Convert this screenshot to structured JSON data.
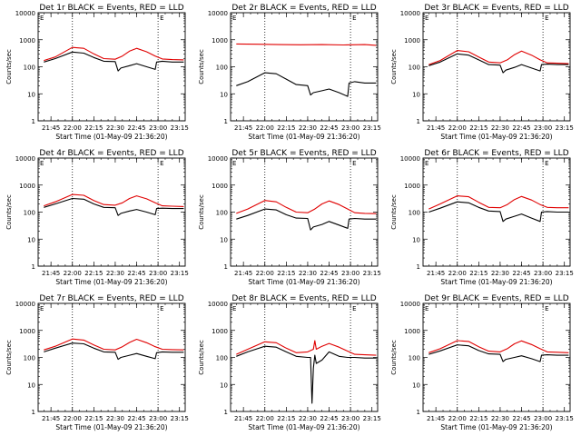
{
  "figure": {
    "red_color": "#e00000",
    "black_color": "#000000",
    "yticks": [
      "1",
      "10",
      "100",
      "1000",
      "10000"
    ],
    "ytick_values": [
      1,
      10,
      100,
      1000,
      10000
    ],
    "xticks": [
      "21:45",
      "22:00",
      "22:15",
      "22:30",
      "22:45",
      "23:00",
      "23:15"
    ],
    "xtick_minutes": [
      -15,
      0,
      15,
      30,
      45,
      60,
      75
    ],
    "dotted_line_minutes": [
      0,
      60
    ],
    "top_marker_labels": [
      "E",
      "E"
    ],
    "ylabel": "Counts/sec",
    "xlabel": "Start Time (01-May-09 21:36:20)"
  },
  "chart_data": [
    {
      "type": "line",
      "title": "Det 1r BLACK = Events, RED = LLD",
      "xlim": [
        "21:36",
        "23:19"
      ],
      "ylim": [
        1,
        10000
      ],
      "yscale": "log",
      "series": [
        {
          "name": "RED",
          "x": [
            "21:40",
            "21:48",
            "22:00",
            "22:08",
            "22:15",
            "22:22",
            "22:30",
            "22:35",
            "22:40",
            "22:45",
            "22:52",
            "22:58",
            "23:03",
            "23:10",
            "23:18"
          ],
          "values": [
            170,
            230,
            520,
            480,
            300,
            200,
            190,
            250,
            380,
            480,
            360,
            250,
            195,
            185,
            180
          ]
        },
        {
          "name": "BLACK",
          "x": [
            "21:40",
            "21:48",
            "22:00",
            "22:08",
            "22:15",
            "22:22",
            "22:30",
            "22:32",
            "22:34",
            "22:40",
            "22:45",
            "22:52",
            "22:58",
            "22:59",
            "23:03",
            "23:10",
            "23:18"
          ],
          "values": [
            150,
            200,
            350,
            320,
            220,
            160,
            155,
            70,
            90,
            110,
            130,
            100,
            80,
            150,
            160,
            150,
            150
          ]
        }
      ]
    },
    {
      "type": "line",
      "title": "Det 2r BLACK = Events, RED = LLD",
      "xlim": [
        "21:36",
        "23:19"
      ],
      "ylim": [
        1,
        10000
      ],
      "yscale": "log",
      "series": [
        {
          "name": "RED",
          "x": [
            "21:40",
            "21:55",
            "22:10",
            "22:25",
            "22:40",
            "22:55",
            "23:10",
            "23:18"
          ],
          "values": [
            700,
            680,
            660,
            650,
            660,
            640,
            660,
            620
          ]
        },
        {
          "name": "BLACK",
          "x": [
            "21:40",
            "21:48",
            "22:00",
            "22:08",
            "22:15",
            "22:22",
            "22:30",
            "22:32",
            "22:34",
            "22:40",
            "22:45",
            "22:52",
            "22:58",
            "22:59",
            "23:03",
            "23:10",
            "23:18"
          ],
          "values": [
            20,
            28,
            60,
            55,
            35,
            22,
            20,
            9,
            11,
            13,
            15,
            11,
            8,
            25,
            28,
            25,
            25
          ]
        }
      ]
    },
    {
      "type": "line",
      "title": "Det 3r BLACK = Events, RED = LLD",
      "xlim": [
        "21:36",
        "23:19"
      ],
      "ylim": [
        1,
        10000
      ],
      "yscale": "log",
      "series": [
        {
          "name": "RED",
          "x": [
            "21:40",
            "21:48",
            "22:00",
            "22:08",
            "22:15",
            "22:22",
            "22:30",
            "22:35",
            "22:40",
            "22:45",
            "22:52",
            "22:58",
            "23:03",
            "23:10",
            "23:18"
          ],
          "values": [
            120,
            170,
            400,
            360,
            230,
            150,
            140,
            180,
            280,
            380,
            270,
            180,
            140,
            135,
            130
          ]
        },
        {
          "name": "BLACK",
          "x": [
            "21:40",
            "21:48",
            "22:00",
            "22:08",
            "22:15",
            "22:22",
            "22:30",
            "22:32",
            "22:34",
            "22:40",
            "22:45",
            "22:52",
            "22:58",
            "22:59",
            "23:03",
            "23:10",
            "23:18"
          ],
          "values": [
            110,
            150,
            300,
            270,
            180,
            120,
            115,
            60,
            75,
            95,
            120,
            90,
            70,
            120,
            125,
            120,
            120
          ]
        }
      ]
    },
    {
      "type": "line",
      "title": "Det 4r BLACK = Events, RED = LLD",
      "xlim": [
        "21:36",
        "23:19"
      ],
      "ylim": [
        1,
        10000
      ],
      "yscale": "log",
      "series": [
        {
          "name": "RED",
          "x": [
            "21:40",
            "21:48",
            "22:00",
            "22:08",
            "22:15",
            "22:22",
            "22:30",
            "22:35",
            "22:40",
            "22:45",
            "22:52",
            "22:58",
            "23:03",
            "23:10",
            "23:18"
          ],
          "values": [
            170,
            240,
            450,
            420,
            270,
            190,
            180,
            220,
            320,
            400,
            310,
            220,
            170,
            165,
            160
          ]
        },
        {
          "name": "BLACK",
          "x": [
            "21:40",
            "21:48",
            "22:00",
            "22:08",
            "22:15",
            "22:22",
            "22:30",
            "22:32",
            "22:34",
            "22:40",
            "22:45",
            "22:52",
            "22:58",
            "22:59",
            "23:03",
            "23:10",
            "23:18"
          ],
          "values": [
            150,
            200,
            320,
            300,
            200,
            150,
            145,
            75,
            90,
            110,
            125,
            100,
            80,
            135,
            140,
            135,
            135
          ]
        }
      ]
    },
    {
      "type": "line",
      "title": "Det 5r BLACK = Events, RED = LLD",
      "xlim": [
        "21:36",
        "23:19"
      ],
      "ylim": [
        1,
        10000
      ],
      "yscale": "log",
      "series": [
        {
          "name": "RED",
          "x": [
            "21:40",
            "21:48",
            "22:00",
            "22:08",
            "22:15",
            "22:22",
            "22:30",
            "22:35",
            "22:40",
            "22:45",
            "22:52",
            "22:58",
            "23:03",
            "23:10",
            "23:18"
          ],
          "values": [
            90,
            130,
            270,
            240,
            150,
            100,
            95,
            130,
            200,
            260,
            190,
            130,
            95,
            90,
            88
          ]
        },
        {
          "name": "BLACK",
          "x": [
            "21:40",
            "21:48",
            "22:00",
            "22:08",
            "22:15",
            "22:22",
            "22:30",
            "22:32",
            "22:34",
            "22:40",
            "22:45",
            "22:52",
            "22:58",
            "22:59",
            "23:03",
            "23:10",
            "23:18"
          ],
          "values": [
            55,
            75,
            130,
            120,
            80,
            60,
            58,
            22,
            28,
            35,
            45,
            33,
            25,
            55,
            58,
            55,
            55
          ]
        }
      ]
    },
    {
      "type": "line",
      "title": "Det 6r BLACK = Events, RED = LLD",
      "xlim": [
        "21:36",
        "23:19"
      ],
      "ylim": [
        1,
        10000
      ],
      "yscale": "log",
      "series": [
        {
          "name": "RED",
          "x": [
            "21:40",
            "21:48",
            "22:00",
            "22:08",
            "22:15",
            "22:22",
            "22:30",
            "22:35",
            "22:40",
            "22:45",
            "22:52",
            "22:58",
            "23:03",
            "23:10",
            "23:18"
          ],
          "values": [
            130,
            200,
            400,
            370,
            230,
            150,
            145,
            190,
            290,
            380,
            280,
            190,
            150,
            145,
            145
          ]
        },
        {
          "name": "BLACK",
          "x": [
            "21:40",
            "21:48",
            "22:00",
            "22:08",
            "22:15",
            "22:22",
            "22:30",
            "22:32",
            "22:34",
            "22:40",
            "22:45",
            "22:52",
            "22:58",
            "22:59",
            "23:03",
            "23:10",
            "23:18"
          ],
          "values": [
            100,
            140,
            240,
            220,
            150,
            110,
            105,
            45,
            55,
            70,
            85,
            60,
            45,
            100,
            105,
            100,
            100
          ]
        }
      ]
    },
    {
      "type": "line",
      "title": "Det 7r BLACK = Events, RED = LLD",
      "xlim": [
        "21:36",
        "23:19"
      ],
      "ylim": [
        1,
        10000
      ],
      "yscale": "log",
      "series": [
        {
          "name": "RED",
          "x": [
            "21:40",
            "21:48",
            "22:00",
            "22:08",
            "22:15",
            "22:22",
            "22:30",
            "22:35",
            "22:40",
            "22:45",
            "22:52",
            "22:58",
            "23:03",
            "23:10",
            "23:18"
          ],
          "values": [
            190,
            260,
            480,
            440,
            290,
            200,
            190,
            250,
            360,
            470,
            350,
            250,
            200,
            195,
            190
          ]
        },
        {
          "name": "BLACK",
          "x": [
            "21:40",
            "21:48",
            "22:00",
            "22:08",
            "22:15",
            "22:22",
            "22:30",
            "22:32",
            "22:34",
            "22:40",
            "22:45",
            "22:52",
            "22:58",
            "22:59",
            "23:03",
            "23:10",
            "23:18"
          ],
          "values": [
            160,
            220,
            340,
            320,
            220,
            160,
            155,
            85,
            100,
            120,
            140,
            110,
            90,
            150,
            160,
            155,
            155
          ]
        }
      ]
    },
    {
      "type": "line",
      "title": "Det 8r BLACK = Events, RED = LLD",
      "xlim": [
        "21:36",
        "23:19"
      ],
      "ylim": [
        1,
        10000
      ],
      "yscale": "log",
      "series": [
        {
          "name": "RED",
          "x": [
            "21:40",
            "21:48",
            "22:00",
            "22:08",
            "22:15",
            "22:22",
            "22:30",
            "22:34",
            "22:35",
            "22:36",
            "22:40",
            "22:45",
            "22:52",
            "22:58",
            "23:03",
            "23:10",
            "23:18"
          ],
          "values": [
            130,
            200,
            380,
            350,
            220,
            150,
            160,
            200,
            420,
            200,
            260,
            330,
            240,
            170,
            130,
            125,
            120
          ]
        },
        {
          "name": "BLACK",
          "x": [
            "21:40",
            "21:48",
            "22:00",
            "22:08",
            "22:15",
            "22:22",
            "22:30",
            "22:32",
            "22:33",
            "22:34",
            "22:35",
            "22:36",
            "22:40",
            "22:45",
            "22:52",
            "22:58",
            "23:03",
            "23:10",
            "23:18"
          ],
          "values": [
            110,
            160,
            260,
            240,
            160,
            110,
            100,
            100,
            2,
            40,
            120,
            60,
            80,
            160,
            110,
            100,
            100,
            95,
            95
          ]
        }
      ]
    },
    {
      "type": "line",
      "title": "Det 9r BLACK = Events, RED = LLD",
      "xlim": [
        "21:36",
        "23:19"
      ],
      "ylim": [
        1,
        10000
      ],
      "yscale": "log",
      "series": [
        {
          "name": "RED",
          "x": [
            "21:40",
            "21:48",
            "22:00",
            "22:08",
            "22:15",
            "22:22",
            "22:30",
            "22:35",
            "22:40",
            "22:45",
            "22:52",
            "22:58",
            "23:03",
            "23:10",
            "23:18"
          ],
          "values": [
            150,
            210,
            420,
            390,
            250,
            170,
            160,
            210,
            320,
            410,
            300,
            210,
            160,
            155,
            150
          ]
        },
        {
          "name": "BLACK",
          "x": [
            "21:40",
            "21:48",
            "22:00",
            "22:08",
            "22:15",
            "22:22",
            "22:30",
            "22:32",
            "22:34",
            "22:40",
            "22:45",
            "22:52",
            "22:58",
            "22:59",
            "23:03",
            "23:10",
            "23:18"
          ],
          "values": [
            130,
            175,
            290,
            270,
            180,
            135,
            130,
            70,
            85,
            100,
            115,
            90,
            70,
            120,
            125,
            120,
            120
          ]
        }
      ]
    }
  ]
}
